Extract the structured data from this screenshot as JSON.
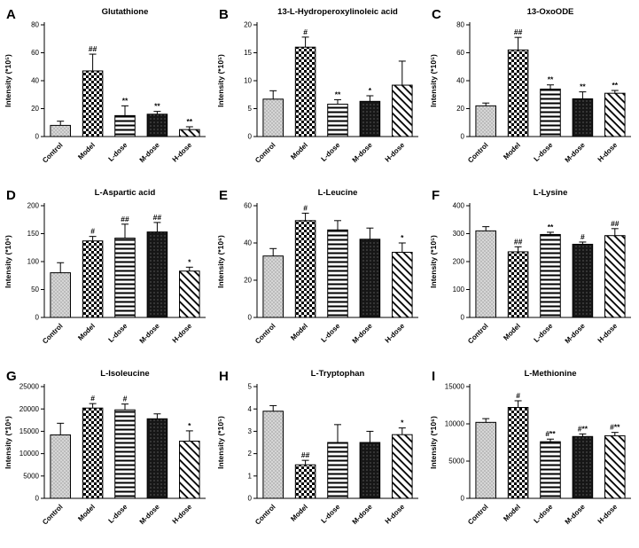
{
  "figure": {
    "background": "#ffffff",
    "axis_color": "#000000",
    "bar_outline_color": "#000000"
  },
  "categories": [
    "Control",
    "Model",
    "L-dose",
    "M-dose",
    "H-dose"
  ],
  "bar_patterns": [
    "stipple-gray",
    "checkerboard",
    "horizontal-lines",
    "solid-dark-dotted",
    "diagonal-lines"
  ],
  "chart_data": [
    {
      "type": "bar",
      "panel_label": "A",
      "title": "Glutathione",
      "ylabel": "Intensity (*10⁵)",
      "xlabel": "",
      "ylim": [
        0,
        80
      ],
      "yticks": [
        0,
        20,
        40,
        60,
        80
      ],
      "values": [
        8,
        47,
        15,
        16,
        5
      ],
      "errors": [
        3,
        12,
        7,
        2,
        2
      ],
      "annotations": [
        "",
        "##",
        "**",
        "**",
        "**"
      ],
      "grid": false,
      "legend": "none"
    },
    {
      "type": "bar",
      "panel_label": "B",
      "title": "13-L-Hydroperoxylinoleic acid",
      "ylabel": "Intensity (*10⁵)",
      "xlabel": "",
      "ylim": [
        0,
        20
      ],
      "yticks": [
        0,
        5,
        10,
        15,
        20
      ],
      "values": [
        6.7,
        16,
        5.8,
        6.3,
        9.2
      ],
      "errors": [
        1.5,
        1.8,
        0.8,
        1.0,
        4.3
      ],
      "annotations": [
        "",
        "#",
        "**",
        "*",
        ""
      ],
      "grid": false,
      "legend": "none"
    },
    {
      "type": "bar",
      "panel_label": "C",
      "title": "13-OxoODE",
      "ylabel": "Intensity (*10⁵)",
      "xlabel": "",
      "ylim": [
        0,
        80
      ],
      "yticks": [
        0,
        20,
        40,
        60,
        80
      ],
      "values": [
        22,
        62,
        34,
        27,
        31
      ],
      "errors": [
        2,
        9,
        3,
        5,
        2
      ],
      "annotations": [
        "",
        "##",
        "**",
        "**",
        "**"
      ],
      "grid": false,
      "legend": "none"
    },
    {
      "type": "bar",
      "panel_label": "D",
      "title": "L-Aspartic acid",
      "ylabel": "Intensity (*10⁶)",
      "xlabel": "",
      "ylim": [
        0,
        200
      ],
      "yticks": [
        0,
        50,
        100,
        150,
        200
      ],
      "values": [
        80,
        137,
        142,
        153,
        83
      ],
      "errors": [
        18,
        8,
        25,
        17,
        7
      ],
      "annotations": [
        "",
        "#",
        "##",
        "##",
        "*"
      ],
      "grid": false,
      "legend": "none"
    },
    {
      "type": "bar",
      "panel_label": "E",
      "title": "L-Leucine",
      "ylabel": "Intensity (*10⁶)",
      "xlabel": "",
      "ylim": [
        0,
        60
      ],
      "yticks": [
        0,
        20,
        40,
        60
      ],
      "values": [
        33,
        52,
        47,
        42,
        35
      ],
      "errors": [
        4,
        4,
        5,
        6,
        5
      ],
      "annotations": [
        "",
        "#",
        "",
        "",
        "*"
      ],
      "grid": false,
      "legend": "none"
    },
    {
      "type": "bar",
      "panel_label": "F",
      "title": "L-Lysine",
      "ylabel": "Intensity (*10⁵)",
      "xlabel": "",
      "ylim": [
        0,
        400
      ],
      "yticks": [
        0,
        100,
        200,
        300,
        400
      ],
      "values": [
        310,
        235,
        297,
        262,
        293
      ],
      "errors": [
        15,
        18,
        8,
        8,
        25
      ],
      "annotations": [
        "",
        "##",
        "**",
        "#",
        "##"
      ],
      "grid": false,
      "legend": "none"
    },
    {
      "type": "bar",
      "panel_label": "G",
      "title": "L-Isoleucine",
      "ylabel": "Intensity (*10⁶)",
      "xlabel": "",
      "ylim": [
        0,
        25000
      ],
      "yticks": [
        0,
        5000,
        10000,
        15000,
        20000,
        25000
      ],
      "values": [
        14200,
        20200,
        19800,
        17800,
        12800
      ],
      "errors": [
        2600,
        1000,
        1300,
        1100,
        2300
      ],
      "annotations": [
        "",
        "#",
        "#",
        "",
        "*"
      ],
      "grid": false,
      "legend": "none"
    },
    {
      "type": "bar",
      "panel_label": "H",
      "title": "L-Tryptophan",
      "ylabel": "Intensity (*10⁵)",
      "xlabel": "",
      "ylim": [
        0,
        5
      ],
      "yticks": [
        0,
        1,
        2,
        3,
        4,
        5
      ],
      "values": [
        3.9,
        1.5,
        2.5,
        2.5,
        2.85
      ],
      "errors": [
        0.25,
        0.2,
        0.8,
        0.5,
        0.3
      ],
      "annotations": [
        "",
        "##",
        "",
        "",
        "*"
      ],
      "grid": false,
      "legend": "none"
    },
    {
      "type": "bar",
      "panel_label": "I",
      "title": "L-Methionine",
      "ylabel": "Intensity (*10⁶)",
      "xlabel": "",
      "ylim": [
        0,
        15000
      ],
      "yticks": [
        0,
        5000,
        10000,
        15000
      ],
      "values": [
        10200,
        12200,
        7600,
        8300,
        8400
      ],
      "errors": [
        500,
        900,
        350,
        350,
        450
      ],
      "annotations": [
        "",
        "#",
        "#**",
        "#**",
        "#**"
      ],
      "grid": false,
      "legend": "none"
    }
  ]
}
